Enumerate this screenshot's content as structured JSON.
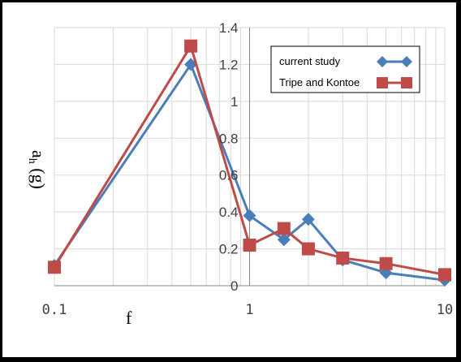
{
  "chart_data": {
    "type": "line",
    "xscale": "log",
    "xlim": [
      0.1,
      10
    ],
    "ylim": [
      0,
      1.4
    ],
    "x_ticks": [
      "0.1",
      "1",
      "10"
    ],
    "y_ticks": [
      "0",
      "0.2",
      "0.4",
      "0.6",
      "0.8",
      "1",
      "1.2",
      "1.4"
    ],
    "xlabel": "f",
    "ylabel_main": "a",
    "ylabel_sub": "h",
    "ylabel_unit": "(g)",
    "grid": true,
    "legend_position": "top-right",
    "series": [
      {
        "name": "current study",
        "color": "#4A7EBB",
        "marker": "diamond",
        "x": [
          0.1,
          0.5,
          1,
          1.5,
          2,
          3,
          5,
          10
        ],
        "y": [
          0.11,
          1.2,
          0.38,
          0.25,
          0.36,
          0.14,
          0.07,
          0.03
        ]
      },
      {
        "name": "Tripe and Kontoe",
        "color": "#BE4B48",
        "marker": "square",
        "x": [
          0.1,
          0.5,
          1,
          1.5,
          2,
          3,
          5,
          10
        ],
        "y": [
          0.1,
          1.3,
          0.22,
          0.31,
          0.2,
          0.15,
          0.12,
          0.06
        ]
      }
    ]
  }
}
